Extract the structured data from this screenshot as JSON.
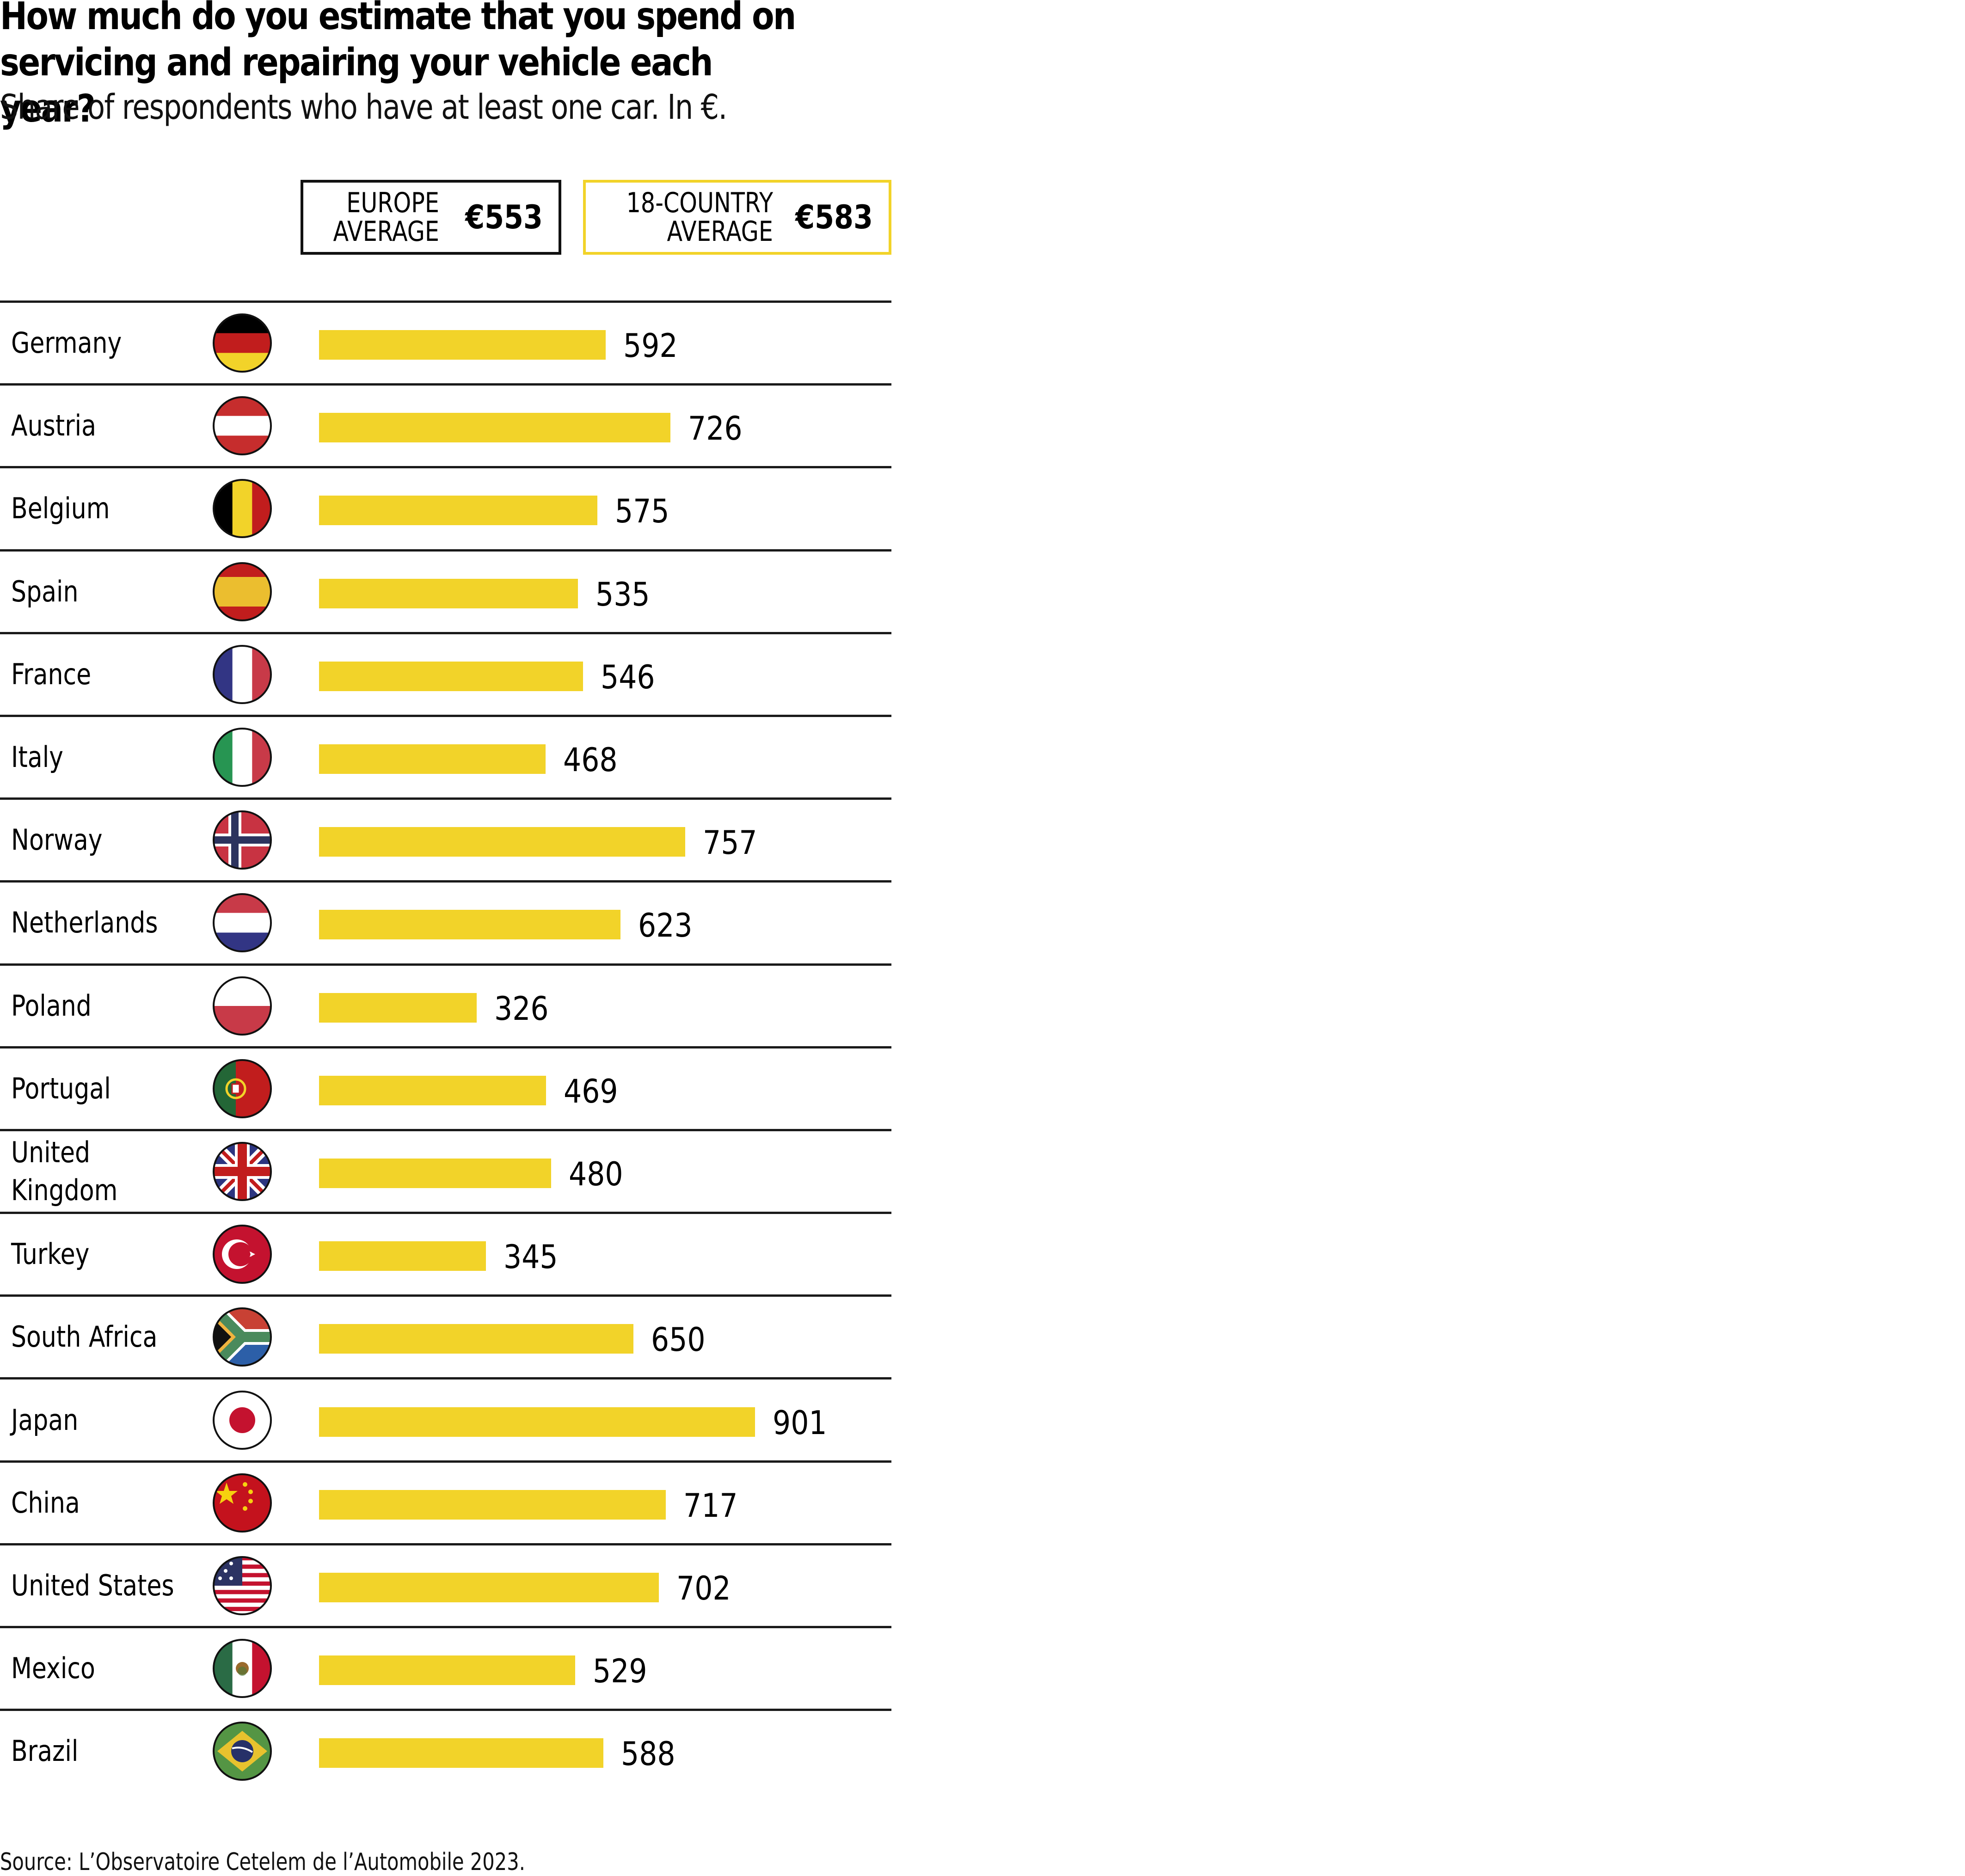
{
  "header": {
    "title_line1": "How much do you estimate that you spend on",
    "title_line2": "servicing and repairing your vehicle each year?",
    "subtitle": "Share of respondents who have at least one car. In €."
  },
  "legend": {
    "europe": {
      "label_line1": "EUROPE",
      "label_line2": "AVERAGE",
      "value": "€553",
      "border_color": "#111111"
    },
    "all": {
      "label_line1": "18-COUNTRY",
      "label_line2": "AVERAGE",
      "value": "€583",
      "border_color": "#f2d329"
    }
  },
  "source": "Source: L’Observatoire Cetelem de l’Automobile 2023.",
  "colors": {
    "bar": "#f2d329",
    "rule": "#1a1a1a"
  },
  "chart_data": {
    "type": "bar",
    "orientation": "horizontal",
    "title": "How much do you estimate that you spend on servicing and repairing your vehicle each year?",
    "subtitle": "Share of respondents who have at least one car. In €.",
    "xlabel": "",
    "ylabel": "",
    "unit": "€",
    "xlim": [
      0,
      901
    ],
    "grid": false,
    "reference_values": [
      {
        "name": "Europe average",
        "value": 553
      },
      {
        "name": "18-country average",
        "value": 583
      }
    ],
    "categories": [
      "Germany",
      "Austria",
      "Belgium",
      "Spain",
      "France",
      "Italy",
      "Norway",
      "Netherlands",
      "Poland",
      "Portugal",
      "United Kingdom",
      "Turkey",
      "South Africa",
      "Japan",
      "China",
      "United States",
      "Mexico",
      "Brazil"
    ],
    "values": [
      592,
      726,
      575,
      535,
      546,
      468,
      757,
      623,
      326,
      469,
      480,
      345,
      650,
      901,
      717,
      702,
      529,
      588
    ],
    "flags": [
      "germany",
      "austria",
      "belgium",
      "spain",
      "france",
      "italy",
      "norway",
      "netherlands",
      "poland",
      "portugal",
      "united-kingdom",
      "turkey",
      "south-africa",
      "japan",
      "china",
      "united-states",
      "mexico",
      "brazil"
    ],
    "label_lines": [
      [
        "Germany"
      ],
      [
        "Austria"
      ],
      [
        "Belgium"
      ],
      [
        "Spain"
      ],
      [
        "France"
      ],
      [
        "Italy"
      ],
      [
        "Norway"
      ],
      [
        "Netherlands"
      ],
      [
        "Poland"
      ],
      [
        "Portugal"
      ],
      [
        "United",
        "Kingdom"
      ],
      [
        "Turkey"
      ],
      [
        "South Africa"
      ],
      [
        "Japan"
      ],
      [
        "China"
      ],
      [
        "United States"
      ],
      [
        "Mexico"
      ],
      [
        "Brazil"
      ]
    ]
  }
}
